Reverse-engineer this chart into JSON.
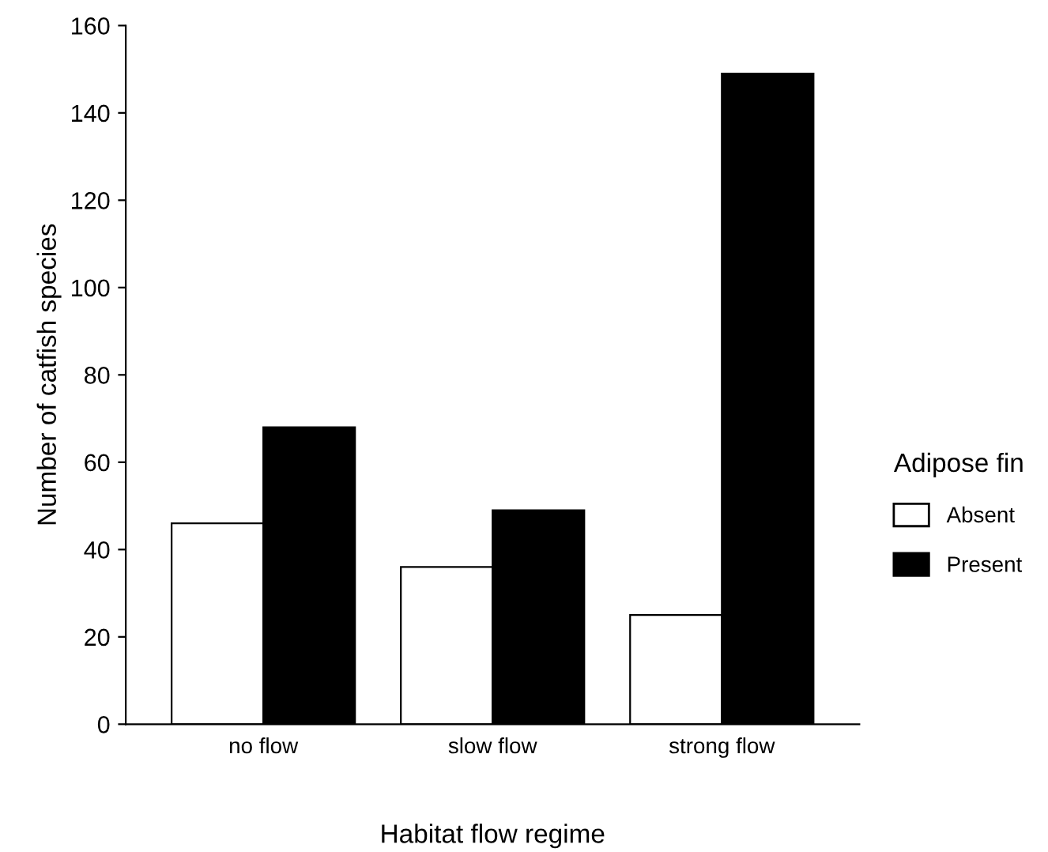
{
  "chart_data": {
    "type": "bar",
    "xlabel": "Habitat flow regime",
    "ylabel": "Number of catfish species",
    "legend_title": "Adipose fin",
    "categories": [
      "no flow",
      "slow flow",
      "strong flow"
    ],
    "series": [
      {
        "name": "Absent",
        "color": "#ffffff",
        "values": [
          46,
          36,
          25
        ]
      },
      {
        "name": "Present",
        "color": "#000000",
        "values": [
          68,
          49,
          149
        ]
      }
    ],
    "ylim": [
      0,
      160
    ],
    "yticks": [
      0,
      20,
      40,
      60,
      80,
      100,
      120,
      140,
      160
    ],
    "grid": false,
    "legend": "right"
  }
}
